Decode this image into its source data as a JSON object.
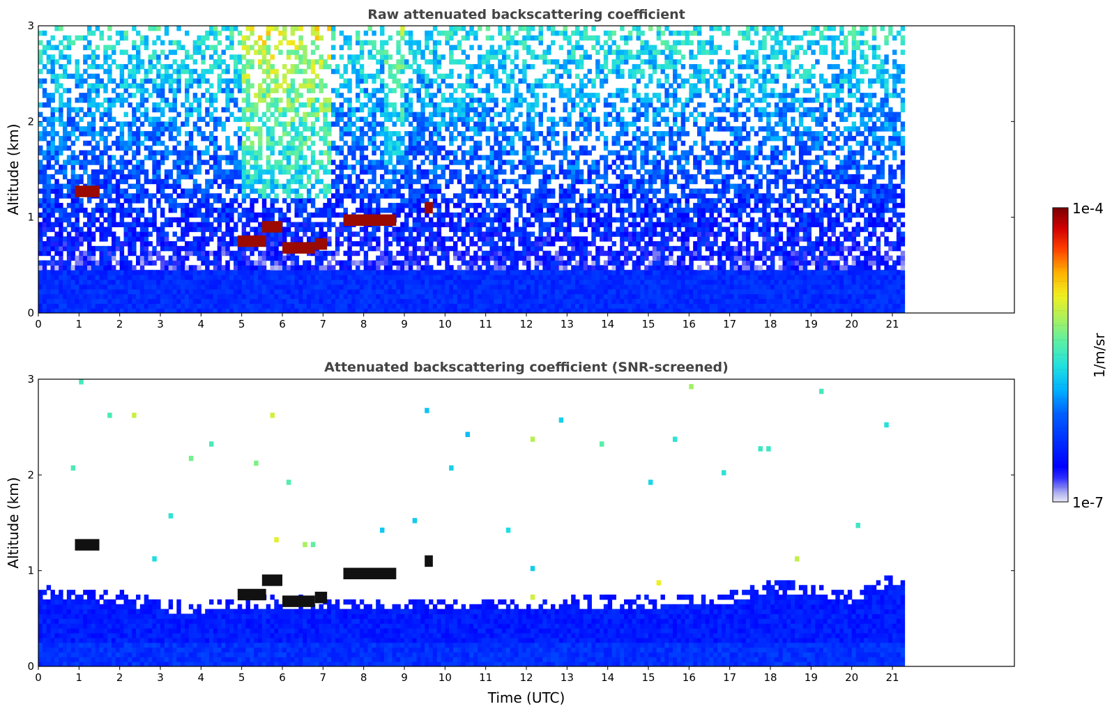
{
  "chart_data": [
    {
      "type": "heatmap",
      "title": "Raw attenuated backscattering coefficient",
      "xlabel": "",
      "ylabel": "Altitude (km)",
      "xlim": [
        0,
        24
      ],
      "ylim": [
        0,
        3
      ],
      "data_xlim": [
        0,
        21.3
      ],
      "xticks": [
        "0",
        "1",
        "2",
        "3",
        "4",
        "5",
        "6",
        "7",
        "8",
        "9",
        "10",
        "11",
        "12",
        "13",
        "14",
        "15",
        "16",
        "17",
        "18",
        "19",
        "20",
        "21"
      ],
      "yticks": [
        "0",
        "1",
        "2",
        "3"
      ],
      "screened": false,
      "cloud_features": [
        {
          "t_start": 0.9,
          "t_end": 1.5,
          "alt_km": 1.27,
          "level": "max"
        },
        {
          "t_start": 4.9,
          "t_end": 5.6,
          "alt_km": 0.75,
          "level": "max"
        },
        {
          "t_start": 5.5,
          "t_end": 6.0,
          "alt_km": 0.9,
          "level": "max"
        },
        {
          "t_start": 6.0,
          "t_end": 6.8,
          "alt_km": 0.68,
          "level": "max"
        },
        {
          "t_start": 6.8,
          "t_end": 7.1,
          "alt_km": 0.72,
          "level": "max"
        },
        {
          "t_start": 7.5,
          "t_end": 8.8,
          "alt_km": 0.97,
          "level": "max"
        },
        {
          "t_start": 9.5,
          "t_end": 9.7,
          "alt_km": 1.1,
          "level": "max"
        }
      ]
    },
    {
      "type": "heatmap",
      "title": "Attenuated backscattering coefficient (SNR-screened)",
      "xlabel": "Time (UTC)",
      "ylabel": "Altitude (km)",
      "xlim": [
        0,
        24
      ],
      "ylim": [
        0,
        3
      ],
      "data_xlim": [
        0,
        21.3
      ],
      "xticks": [
        "0",
        "1",
        "2",
        "3",
        "4",
        "5",
        "6",
        "7",
        "8",
        "9",
        "10",
        "11",
        "12",
        "13",
        "14",
        "15",
        "16",
        "17",
        "18",
        "19",
        "20",
        "21"
      ],
      "yticks": [
        "0",
        "1",
        "2",
        "3"
      ],
      "screened": true,
      "boundary_layer_top_km": [
        [
          0,
          0.72
        ],
        [
          2,
          0.66
        ],
        [
          3,
          0.58
        ],
        [
          4,
          0.55
        ],
        [
          5,
          0.62
        ],
        [
          6,
          0.62
        ],
        [
          7,
          0.6
        ],
        [
          9,
          0.58
        ],
        [
          12,
          0.6
        ],
        [
          15,
          0.62
        ],
        [
          17,
          0.66
        ],
        [
          18,
          0.78
        ],
        [
          19,
          0.76
        ],
        [
          20,
          0.66
        ],
        [
          21,
          0.85
        ],
        [
          21.3,
          0.88
        ]
      ]
    }
  ],
  "colorbar": {
    "label": "1/m/sr",
    "max_label": "1e-4",
    "min_label": "1e-7",
    "vmin": 1e-07,
    "vmax": 0.0001,
    "colormap": "jet"
  }
}
